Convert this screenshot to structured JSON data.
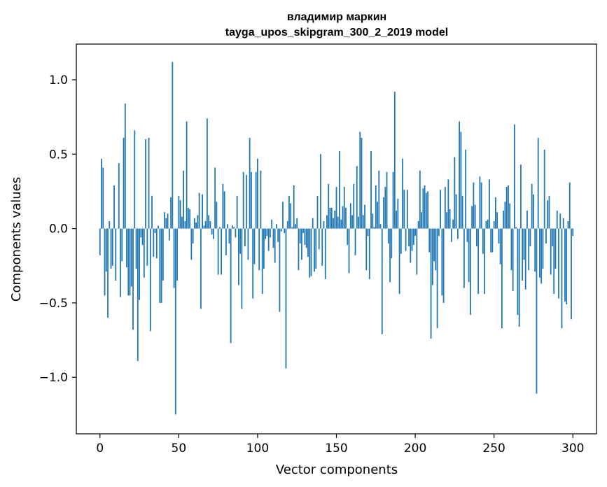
{
  "chart_data": {
    "type": "bar",
    "title": "владимир маркин",
    "subtitle": "tayga_upos_skipgram_300_2_2019 model",
    "xlabel": "Vector components",
    "ylabel": "Components values",
    "xlim": [
      -15,
      315
    ],
    "ylim": [
      -1.38,
      1.24
    ],
    "xticks": [
      0,
      50,
      100,
      150,
      200,
      250,
      300
    ],
    "yticks": [
      -1.0,
      -0.5,
      0.0,
      0.5,
      1.0
    ],
    "ytick_labels": [
      "−1.0",
      "−0.5",
      "0.0",
      "0.5",
      "1.0"
    ],
    "bar_color": "#1f77b4",
    "grid": false,
    "x_start": 0,
    "values": [
      -0.18,
      0.47,
      0.41,
      -0.45,
      -0.29,
      -0.6,
      0.05,
      -0.27,
      -0.25,
      0.29,
      -0.35,
      0.0,
      0.44,
      -0.46,
      -0.22,
      0.61,
      0.84,
      -0.26,
      -0.45,
      -0.45,
      -0.39,
      -0.68,
      0.66,
      -0.27,
      -0.89,
      -0.48,
      -0.06,
      -0.11,
      -0.33,
      0.6,
      -0.25,
      0.61,
      -0.69,
      0.22,
      -0.19,
      -0.03,
      -0.2,
      0.02,
      -0.5,
      -0.5,
      -0.35,
      0.11,
      0.07,
      0.1,
      -0.08,
      0.21,
      1.12,
      -0.4,
      -1.25,
      -0.35,
      0.22,
      0.19,
      0.08,
      0.39,
      0.05,
      0.72,
      0.14,
      0.13,
      -0.21,
      -0.1,
      0.07,
      0.04,
      0.09,
      0.24,
      -0.54,
      0.23,
      0.02,
      0.05,
      0.74,
      0.09,
      0.05,
      -0.04,
      -0.07,
      0.41,
      0.18,
      -0.31,
      0.01,
      -0.31,
      0.3,
      0.25,
      -0.18,
      0.03,
      -0.1,
      -0.77,
      0.02,
      0.01,
      -0.06,
      0.22,
      -0.38,
      -0.17,
      -0.54,
      0.38,
      -0.12,
      0.36,
      -0.21,
      0.61,
      0.38,
      -0.47,
      -0.24,
      0.38,
      0.47,
      -0.28,
      0.39,
      -0.44,
      -0.27,
      -0.07,
      -0.05,
      -0.15,
      -0.06,
      0.06,
      -0.13,
      -0.23,
      0.03,
      -0.09,
      -0.56,
      -0.02,
      0.18,
      -0.03,
      -0.94,
      0.05,
      0.22,
      0.17,
      0.01,
      0.29,
      0.03,
      0.07,
      -0.28,
      -0.1,
      -0.21,
      -0.03,
      -0.11,
      -0.13,
      -0.19,
      -0.33,
      -0.32,
      0.07,
      -0.29,
      -0.27,
      0.22,
      -0.14,
      0.5,
      -0.25,
      0.05,
      -0.34,
      0.09,
      0.3,
      0.14,
      0.14,
      0.07,
      0.12,
      0.28,
      0.08,
      0.52,
      0.06,
      0.15,
      0.28,
      0.14,
      -0.11,
      -0.3,
      0.17,
      0.09,
      0.3,
      -0.18,
      0.42,
      0.08,
      0.65,
      0.61,
      0.09,
      0.16,
      -0.28,
      -0.05,
      -0.34,
      0.52,
      0.1,
      0.01,
      0.29,
      0.18,
      0.39,
      0.03,
      -0.71,
      0.21,
      0.28,
      0.38,
      -0.1,
      -0.36,
      -0.2,
      0.38,
      0.92,
      0.12,
      0.2,
      -0.44,
      -0.17,
      0.47,
      0.26,
      -0.15,
      0.26,
      -0.12,
      -0.23,
      -0.15,
      -0.11,
      -0.05,
      -0.31,
      0.05,
      0.39,
      0.11,
      0.27,
      0.29,
      0.24,
      0.25,
      -0.16,
      -0.74,
      -0.38,
      -0.22,
      -0.28,
      -0.67,
      -0.05,
      0.26,
      -0.45,
      -0.5,
      0.28,
      0.11,
      0.33,
      0.13,
      -0.09,
      0.06,
      0.48,
      0.23,
      -0.07,
      0.72,
      0.65,
      0.22,
      -0.4,
      0.53,
      -0.09,
      -0.36,
      -0.58,
      0.15,
      0.31,
      0.16,
      -0.12,
      -0.44,
      0.35,
      0.31,
      -0.17,
      -0.44,
      0.05,
      0.06,
      0.33,
      -0.16,
      -0.16,
      0.05,
      0.21,
      0.11,
      -0.1,
      -0.24,
      -0.67,
      0.12,
      0.18,
      0.28,
      0.29,
      0.17,
      -0.28,
      -0.42,
      0.7,
      0.01,
      -0.58,
      -0.66,
      0.43,
      -0.35,
      -0.21,
      -0.41,
      0.12,
      -0.28,
      -0.12,
      0.3,
      0.23,
      -0.29,
      -1.11,
      0.61,
      -0.33,
      -0.37,
      -0.27,
      0.53,
      -0.1,
      0.19,
      0.22,
      -0.31,
      -0.12,
      -0.44,
      -0.27,
      0.12,
      -0.47,
      0.1,
      -0.67,
      0.07,
      -0.49,
      -0.51,
      0.05,
      0.31,
      -0.61,
      -0.05
    ]
  }
}
